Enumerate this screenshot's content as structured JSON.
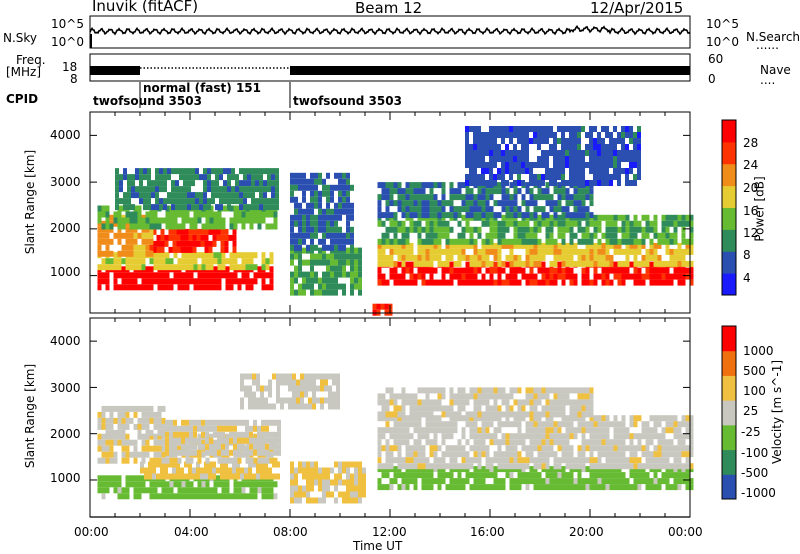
{
  "header": {
    "station": "Inuvik  (fitACF)",
    "beam": "Beam 12",
    "date": "12/Apr/2015"
  },
  "top_panels": {
    "nsky_label": "N.Sky",
    "nsearch_label": "N.Search",
    "nsearch_dots": "......",
    "noise_ticks_left": [
      "10^5",
      "10^0"
    ],
    "noise_ticks_right": [
      "10^5",
      "10^0"
    ],
    "freq_label_1": "Freq.",
    "freq_label_2": "[MHz]",
    "freq_ticks_left": [
      "18",
      "8"
    ],
    "nave_label": "Nave",
    "nave_dots": "....",
    "nave_ticks_right": [
      "60",
      "0"
    ],
    "cpid_label": "CPID",
    "cpid_segments": [
      {
        "label": "twofsound 3503",
        "start_hour": 0,
        "end_hour": 2
      },
      {
        "label": "normal (fast) 151",
        "start_hour": 2,
        "end_hour": 8
      },
      {
        "label": "twofsound 3503",
        "start_hour": 8,
        "end_hour": 24
      }
    ]
  },
  "x_axis": {
    "label": "Time UT",
    "ticks": [
      "00:00",
      "04:00",
      "08:00",
      "12:00",
      "16:00",
      "20:00",
      "00:00"
    ]
  },
  "chart_data": [
    {
      "type": "heatmap",
      "title": "Power",
      "xlabel": "Time UT",
      "ylabel": "Slant Range [km]",
      "xlim": [
        0,
        24
      ],
      "ylim": [
        200,
        4500
      ],
      "y_ticks": [
        "4000",
        "3000",
        "2000",
        "1000"
      ],
      "colorbar": {
        "label": "Power [dB]",
        "ticks": [
          "28",
          "24",
          "20",
          "16",
          "12",
          "8",
          "4"
        ],
        "range": [
          0,
          30
        ],
        "colors": [
          "#1a1aff",
          "#2a4fb0",
          "#2f8c5a",
          "#66bb33",
          "#e6cc33",
          "#f08c1a",
          "#ff3300",
          "#ff0000"
        ]
      },
      "regions": [
        {
          "t_start": 0.3,
          "t_end": 7.2,
          "range_km": [
            700,
            1200
          ],
          "value": 28
        },
        {
          "t_start": 0.3,
          "t_end": 7.2,
          "range_km": [
            1200,
            1500
          ],
          "value": 16
        },
        {
          "t_start": 2.5,
          "t_end": 5.8,
          "range_km": [
            1500,
            2000
          ],
          "value": 26
        },
        {
          "t_start": 0.3,
          "t_end": 2.5,
          "range_km": [
            1500,
            2300
          ],
          "value": 20
        },
        {
          "t_start": 0.3,
          "t_end": 7.5,
          "range_km": [
            2000,
            2500
          ],
          "value": 12
        },
        {
          "t_start": 1.0,
          "t_end": 7.5,
          "range_km": [
            2500,
            3300
          ],
          "value": 8
        },
        {
          "t_start": 8.0,
          "t_end": 10.8,
          "range_km": [
            600,
            1600
          ],
          "value": 10
        },
        {
          "t_start": 8.0,
          "t_end": 10.5,
          "range_km": [
            1600,
            3200
          ],
          "value": 6
        },
        {
          "t_start": 11.3,
          "t_end": 12.0,
          "range_km": [
            200,
            400
          ],
          "value": 26
        },
        {
          "t_start": 11.5,
          "t_end": 24.0,
          "range_km": [
            800,
            1300
          ],
          "value": 27
        },
        {
          "t_start": 11.5,
          "t_end": 24.0,
          "range_km": [
            1300,
            1700
          ],
          "value": 17
        },
        {
          "t_start": 11.5,
          "t_end": 24.0,
          "range_km": [
            1700,
            2300
          ],
          "value": 11
        },
        {
          "t_start": 11.5,
          "t_end": 20.0,
          "range_km": [
            2300,
            3000
          ],
          "value": 7
        },
        {
          "t_start": 15.0,
          "t_end": 22.0,
          "range_km": [
            3000,
            4200
          ],
          "value": 5
        }
      ]
    },
    {
      "type": "heatmap",
      "title": "Velocity",
      "xlabel": "Time UT",
      "ylabel": "Slant Range [km]",
      "xlim": [
        0,
        24
      ],
      "ylim": [
        200,
        4500
      ],
      "y_ticks": [
        "4000",
        "3000",
        "2000",
        "1000"
      ],
      "colorbar": {
        "label": "Velocity [m s^-1]",
        "ticks": [
          "1000",
          "500",
          "100",
          "25",
          "-25",
          "-100",
          "-500",
          "-1000"
        ],
        "range": [
          -1000,
          1000
        ],
        "colors": [
          "#2a4fb0",
          "#2f8c5a",
          "#66bb33",
          "#c8c8c0",
          "#f0c040",
          "#f07010",
          "#ff0000"
        ]
      },
      "regions": [
        {
          "t_start": 0.3,
          "t_end": 7.5,
          "range_km": [
            700,
            1100
          ],
          "value": -300
        },
        {
          "t_start": 2.0,
          "t_end": 7.5,
          "range_km": [
            1100,
            1400
          ],
          "value": 200
        },
        {
          "t_start": 0.3,
          "t_end": 7.5,
          "range_km": [
            1400,
            2000
          ],
          "value": 80
        },
        {
          "t_start": 0.3,
          "t_end": 3.0,
          "range_km": [
            2000,
            2600
          ],
          "value": 0
        },
        {
          "t_start": 3.0,
          "t_end": 7.5,
          "range_km": [
            1600,
            2300
          ],
          "value": 40
        },
        {
          "t_start": 6.0,
          "t_end": 10.0,
          "range_km": [
            2600,
            3300
          ],
          "value": 0
        },
        {
          "t_start": 8.0,
          "t_end": 11.0,
          "range_km": [
            500,
            1400
          ],
          "value": 150
        },
        {
          "t_start": 11.5,
          "t_end": 24.0,
          "range_km": [
            800,
            1300
          ],
          "value": -300
        },
        {
          "t_start": 11.5,
          "t_end": 24.0,
          "range_km": [
            1300,
            2400
          ],
          "value": 0
        },
        {
          "t_start": 11.5,
          "t_end": 20.0,
          "range_km": [
            2400,
            3000
          ],
          "value": 10
        }
      ]
    }
  ]
}
